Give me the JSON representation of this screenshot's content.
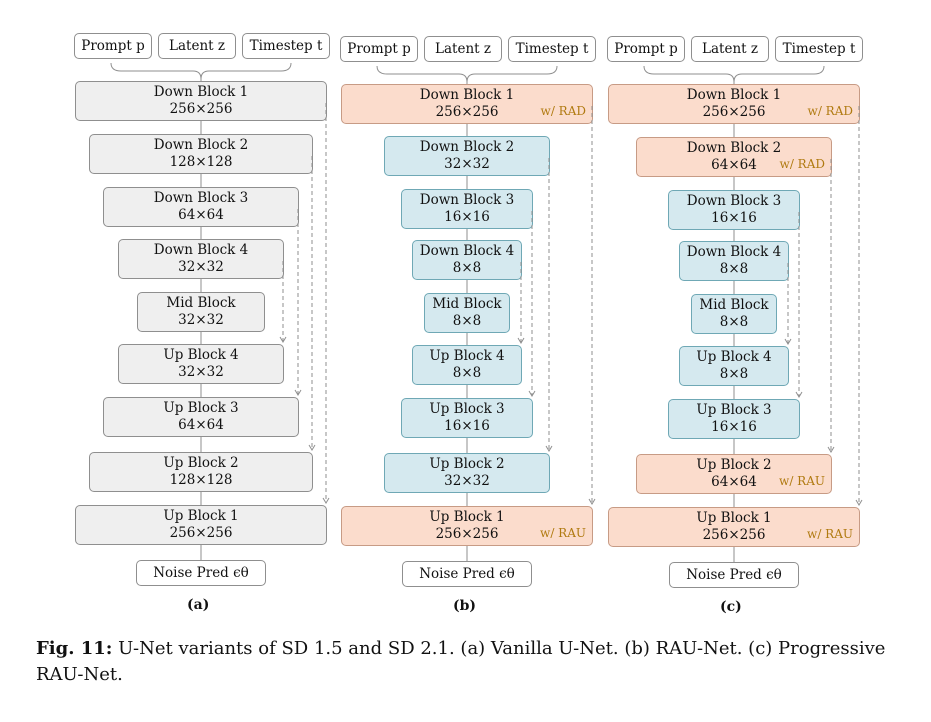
{
  "inputs": {
    "prompt": "Prompt p",
    "latent": "Latent z",
    "timestep": "Timestep t"
  },
  "panels": [
    {
      "label": "(a)",
      "blocks": [
        {
          "name": "Down Block 1",
          "size": "256×256",
          "tag": ""
        },
        {
          "name": "Down Block 2",
          "size": "128×128",
          "tag": ""
        },
        {
          "name": "Down Block 3",
          "size": "64×64",
          "tag": ""
        },
        {
          "name": "Down Block 4",
          "size": "32×32",
          "tag": ""
        },
        {
          "name": "Mid Block",
          "size": "32×32",
          "tag": ""
        },
        {
          "name": "Up Block 4",
          "size": "32×32",
          "tag": ""
        },
        {
          "name": "Up Block 3",
          "size": "64×64",
          "tag": ""
        },
        {
          "name": "Up Block 2",
          "size": "128×128",
          "tag": ""
        },
        {
          "name": "Up Block 1",
          "size": "256×256",
          "tag": ""
        }
      ],
      "output": "Noise Pred ϵθ"
    },
    {
      "label": "(b)",
      "blocks": [
        {
          "name": "Down Block 1",
          "size": "256×256",
          "tag": "w/ RAD"
        },
        {
          "name": "Down Block 2",
          "size": "32×32",
          "tag": ""
        },
        {
          "name": "Down Block 3",
          "size": "16×16",
          "tag": ""
        },
        {
          "name": "Down Block 4",
          "size": "8×8",
          "tag": ""
        },
        {
          "name": "Mid Block",
          "size": "8×8",
          "tag": ""
        },
        {
          "name": "Up Block 4",
          "size": "8×8",
          "tag": ""
        },
        {
          "name": "Up Block 3",
          "size": "16×16",
          "tag": ""
        },
        {
          "name": "Up Block 2",
          "size": "32×32",
          "tag": ""
        },
        {
          "name": "Up Block 1",
          "size": "256×256",
          "tag": "w/ RAU"
        }
      ],
      "output": "Noise Pred ϵθ"
    },
    {
      "label": "(c)",
      "blocks": [
        {
          "name": "Down Block 1",
          "size": "256×256",
          "tag": "w/ RAD"
        },
        {
          "name": "Down Block 2",
          "size": "64×64",
          "tag": "w/ RAD"
        },
        {
          "name": "Down Block 3",
          "size": "16×16",
          "tag": ""
        },
        {
          "name": "Down Block 4",
          "size": "8×8",
          "tag": ""
        },
        {
          "name": "Mid Block",
          "size": "8×8",
          "tag": ""
        },
        {
          "name": "Up Block 4",
          "size": "8×8",
          "tag": ""
        },
        {
          "name": "Up Block 3",
          "size": "16×16",
          "tag": ""
        },
        {
          "name": "Up Block 2",
          "size": "64×64",
          "tag": "w/ RAU"
        },
        {
          "name": "Up Block 1",
          "size": "256×256",
          "tag": "w/ RAU"
        }
      ],
      "output": "Noise Pred ϵθ"
    }
  ],
  "caption": {
    "prefix": "Fig. 11:",
    "text": "U-Net variants of SD 1.5 and SD 2.1. (a) Vanilla U-Net. (b) RAU-Net. (c) Progressive RAU-Net."
  },
  "colors": {
    "vanilla_block": "#efefef",
    "low_res_block": "#d5e9ef",
    "rau_block": "#fbdccc",
    "tag_text": "#b07a10"
  }
}
